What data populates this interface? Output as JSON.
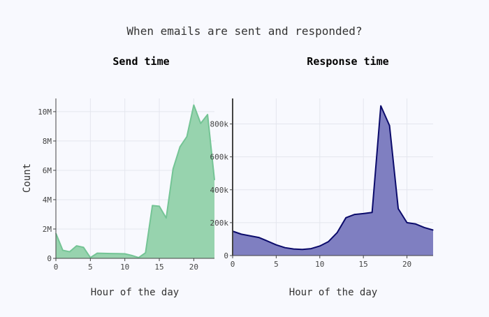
{
  "figure": {
    "title": "When emails are sent and responded?"
  },
  "chart_data": [
    {
      "type": "area",
      "title": "Send time",
      "xlabel": "Hour of the day",
      "ylabel": "Count",
      "xlim": [
        0,
        23
      ],
      "ylim": [
        0,
        10900000
      ],
      "x_ticks": [
        0,
        5,
        10,
        15,
        20
      ],
      "y_ticks": [
        0,
        2000000,
        4000000,
        6000000,
        8000000,
        10000000
      ],
      "y_tick_labels": [
        "0",
        "2M",
        "4M",
        "6M",
        "8M",
        "10M"
      ],
      "grid": true,
      "x": [
        0,
        1,
        2,
        3,
        4,
        5,
        6,
        7,
        8,
        9,
        10,
        11,
        12,
        13,
        14,
        15,
        16,
        17,
        18,
        19,
        20,
        21,
        22,
        23
      ],
      "values": [
        1700000,
        550000,
        450000,
        850000,
        750000,
        50000,
        350000,
        340000,
        330000,
        320000,
        310000,
        200000,
        50000,
        380000,
        3600000,
        3550000,
        2750000,
        6100000,
        7600000,
        8300000,
        10450000,
        9200000,
        9800000,
        5350000
      ],
      "colors": {
        "line": "#74c495",
        "fill": "#97d3ae"
      }
    },
    {
      "type": "area",
      "title": "Response time",
      "xlabel": "Hour of the day",
      "ylabel": "",
      "xlim": [
        0,
        23
      ],
      "ylim": [
        0,
        955000
      ],
      "x_ticks": [
        0,
        5,
        10,
        15,
        20
      ],
      "y_ticks": [
        0,
        200000,
        400000,
        600000,
        800000
      ],
      "y_tick_labels": [
        "0",
        "200k",
        "400k",
        "600k",
        "800k"
      ],
      "grid": true,
      "x": [
        0,
        1,
        2,
        3,
        4,
        5,
        6,
        7,
        8,
        9,
        10,
        11,
        12,
        13,
        14,
        15,
        16,
        17,
        18,
        19,
        20,
        21,
        22,
        23
      ],
      "values": [
        148000,
        130000,
        120000,
        110000,
        88000,
        65000,
        48000,
        40000,
        37000,
        42000,
        58000,
        85000,
        140000,
        230000,
        250000,
        255000,
        262000,
        910000,
        790000,
        285000,
        200000,
        192000,
        170000,
        155000
      ],
      "colors": {
        "line": "#0b0b6b",
        "fill": "#7f7fc1"
      }
    }
  ]
}
